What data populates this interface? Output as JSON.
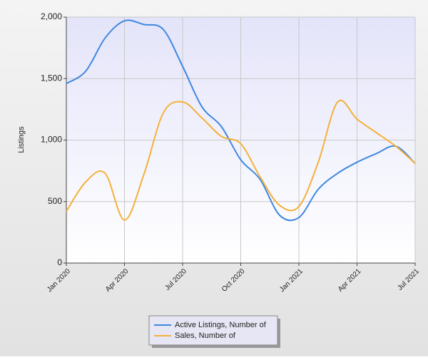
{
  "chart_data": {
    "type": "line",
    "y_label": "Listings",
    "categories": [
      "Jan 2020",
      null,
      null,
      "Apr 2020",
      null,
      null,
      "Jul 2020",
      null,
      null,
      "Oct 2020",
      null,
      null,
      "Jan 2021",
      null,
      null,
      "Apr 2021",
      null,
      null,
      "Jul 2021"
    ],
    "series": [
      {
        "name": "Active Listings, Number of",
        "color": "#3f88e0",
        "values": [
          1460,
          1560,
          1830,
          1970,
          1940,
          1900,
          1600,
          1270,
          1110,
          840,
          680,
          390,
          370,
          600,
          730,
          820,
          890,
          950,
          810
        ]
      },
      {
        "name": "Sales, Number of",
        "color": "#f5b13a",
        "values": [
          420,
          660,
          730,
          350,
          720,
          1220,
          1310,
          1180,
          1030,
          970,
          700,
          470,
          460,
          820,
          1310,
          1170,
          1060,
          950,
          810
        ]
      }
    ],
    "ylim": [
      0,
      2000
    ],
    "yticks": [
      0,
      500,
      {
        "value": 1000,
        "label": "1,000"
      },
      {
        "value": 1500,
        "label": "1,500"
      },
      {
        "value": 2000,
        "label": "2,000"
      }
    ],
    "grid": true
  }
}
